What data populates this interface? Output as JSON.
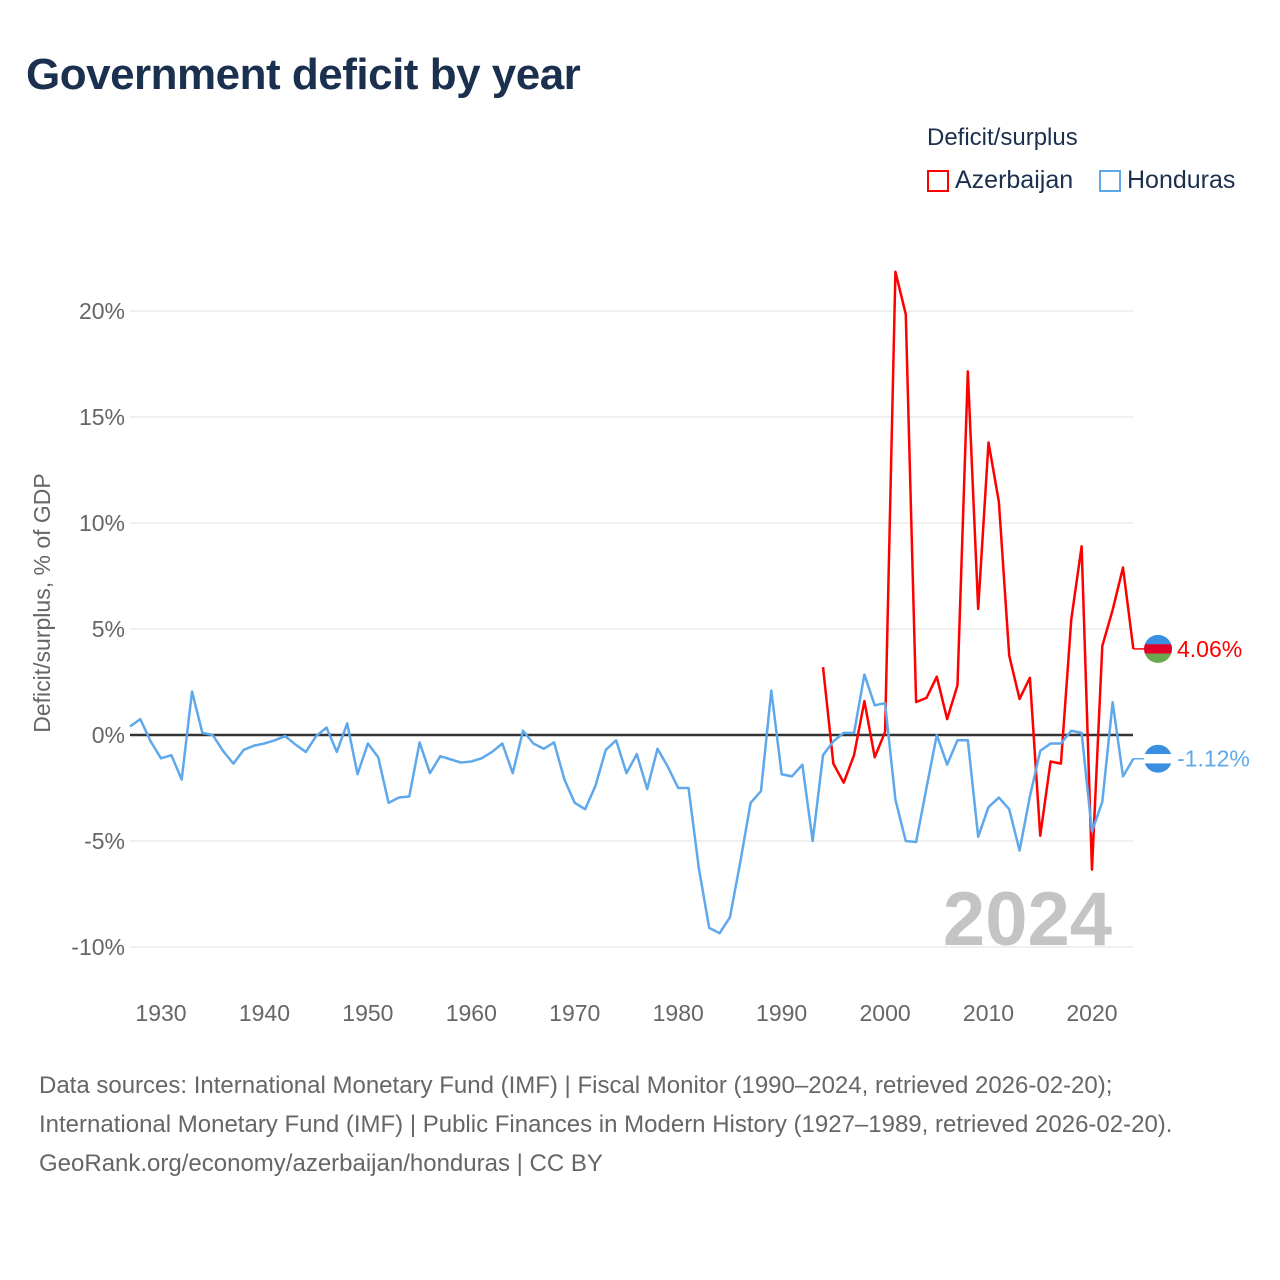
{
  "title": "Government deficit by year",
  "legend": {
    "title": "Deficit/surplus",
    "items": [
      {
        "name": "Azerbaijan",
        "color": "#ff0000"
      },
      {
        "name": "Honduras",
        "color": "#5ea8eb"
      }
    ]
  },
  "year_watermark": "2024",
  "footer": {
    "sources": "Data sources: International Monetary Fund (IMF) | Fiscal Monitor (1990–2024, retrieved 2026-02-20); International Monetary Fund (IMF) | Public Finances in Modern History (1927–1989, retrieved 2026-02-20).",
    "credit": "GeoRank.org/economy/azerbaijan/honduras | CC BY"
  },
  "chart_data": {
    "type": "line",
    "title": "Government deficit by year",
    "xlabel": "",
    "ylabel": "Deficit/surplus, % of GDP",
    "xlim": [
      1927,
      2024
    ],
    "ylim": [
      -11,
      22
    ],
    "yticks": [
      -10,
      -5,
      0,
      5,
      10,
      15,
      20
    ],
    "ytick_labels": [
      "-10%",
      "-5%",
      "0%",
      "5%",
      "10%",
      "15%",
      "20%"
    ],
    "xticks": [
      1930,
      1940,
      1950,
      1960,
      1970,
      1980,
      1990,
      2000,
      2010,
      2020
    ],
    "xtick_labels": [
      "1930",
      "1940",
      "1950",
      "1960",
      "1970",
      "1980",
      "1990",
      "2000",
      "2010",
      "2020"
    ],
    "grid": true,
    "legend_position": "top-right",
    "series": [
      {
        "name": "Azerbaijan",
        "color": "#ff0000",
        "start_year": 1994,
        "end_label": "4.06%",
        "values": [
          3.2,
          -1.35,
          -2.25,
          -0.95,
          1.6,
          -1.05,
          0.15,
          21.85,
          19.85,
          1.55,
          1.75,
          2.75,
          0.75,
          2.35,
          17.15,
          5.95,
          13.8,
          11.0,
          3.75,
          1.7,
          2.7,
          -4.75,
          -1.25,
          -1.35,
          5.45,
          8.9,
          -6.35,
          4.2,
          5.9,
          7.9,
          4.06
        ]
      },
      {
        "name": "Honduras",
        "color": "#5ea8eb",
        "start_year": 1927,
        "end_label": "-1.12%",
        "values": [
          0.4,
          0.75,
          -0.3,
          -1.1,
          -0.95,
          -2.1,
          2.05,
          0.1,
          0.0,
          -0.75,
          -1.35,
          -0.7,
          -0.5,
          -0.4,
          -0.25,
          -0.05,
          -0.45,
          -0.8,
          -0.05,
          0.35,
          -0.8,
          0.55,
          -1.85,
          -0.4,
          -1.05,
          -3.2,
          -2.95,
          -2.9,
          -0.35,
          -1.8,
          -1.0,
          -1.15,
          -1.3,
          -1.25,
          -1.1,
          -0.8,
          -0.4,
          -1.8,
          0.2,
          -0.4,
          -0.65,
          -0.35,
          -2.1,
          -3.2,
          -3.5,
          -2.4,
          -0.7,
          -0.25,
          -1.8,
          -0.9,
          -2.55,
          -0.65,
          -1.5,
          -2.5,
          -2.5,
          -6.3,
          -9.1,
          -9.35,
          -8.6,
          -6.0,
          -3.2,
          -2.65,
          2.1,
          -1.85,
          -1.95,
          -1.4,
          -5.0,
          -0.95,
          -0.3,
          0.1,
          0.1,
          2.85,
          1.4,
          1.5,
          -3.05,
          -5.0,
          -5.05,
          -2.5,
          0.0,
          -1.4,
          -0.25,
          -0.25,
          -4.8,
          -3.4,
          -2.95,
          -3.5,
          -5.45,
          -2.9,
          -0.75,
          -0.4,
          -0.4,
          0.2,
          0.1,
          -4.55,
          -3.15,
          1.55,
          -1.95,
          -1.12
        ]
      }
    ]
  }
}
